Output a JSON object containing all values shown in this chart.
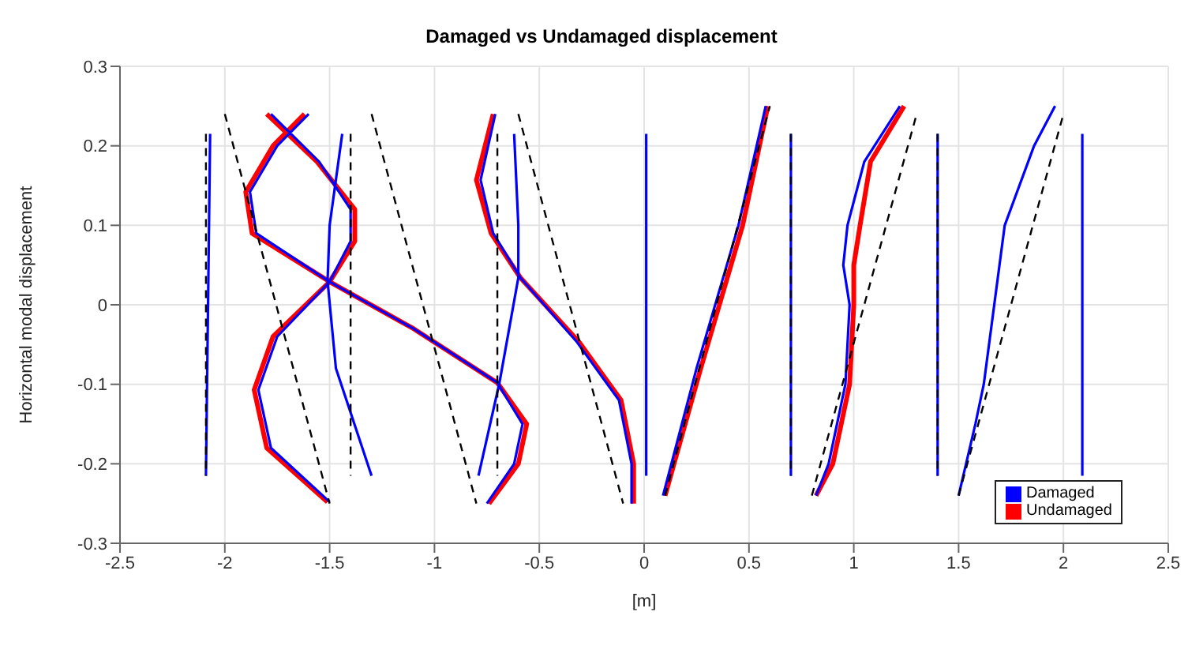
{
  "chart_data": {
    "type": "line",
    "title": "Damaged vs Undamaged displacement",
    "xlabel": "[m]",
    "ylabel": "Horizontal modal displacement",
    "xlim": [
      -2.5,
      2.5
    ],
    "xticks": [
      -2.5,
      -2,
      -1.5,
      -1,
      -0.5,
      0,
      0.5,
      1,
      1.5,
      2,
      2.5
    ],
    "ylim": [
      -0.3,
      0.3
    ],
    "yticks": [
      -0.3,
      -0.2,
      -0.1,
      0,
      0.1,
      0.2,
      0.3
    ],
    "grid": true,
    "legend": "bottom right",
    "marker": "none",
    "series": [
      {
        "name": "Undamaged",
        "color": "#ff0000",
        "x": [
          -1.62,
          -1.77,
          -1.9,
          -1.87,
          -1.5,
          -1.77,
          -1.86,
          -1.8,
          -1.51,
          null,
          -1.8,
          -1.56,
          -1.38,
          -1.38,
          -1.5,
          -1.1,
          -0.7,
          -0.56,
          -0.6,
          -0.74,
          null,
          -0.72,
          -0.8,
          -0.73,
          -0.59,
          -0.31,
          -0.11,
          -0.05,
          -0.05,
          null,
          0.1,
          0.27,
          0.47,
          0.59,
          null,
          0.82,
          0.9,
          0.98,
          1.0,
          1.0,
          1.03,
          1.08,
          1.24
        ],
        "values": [
          0.24,
          0.2,
          0.142,
          0.09,
          0.029,
          -0.04,
          -0.107,
          -0.18,
          -0.248,
          null,
          0.24,
          0.18,
          0.12,
          0.08,
          0.029,
          -0.03,
          -0.098,
          -0.15,
          -0.2,
          -0.25,
          null,
          0.24,
          0.157,
          0.09,
          0.034,
          -0.047,
          -0.12,
          -0.2,
          -0.25,
          null,
          -0.24,
          -0.08,
          0.1,
          0.25,
          null,
          -0.24,
          -0.2,
          -0.1,
          0,
          0.05,
          0.1,
          0.18,
          0.25
        ]
      },
      {
        "name": "Damaged",
        "color": "#0000ff",
        "x": [
          -2.07,
          -2.09,
          null,
          -1.6,
          -1.75,
          -1.88,
          -1.85,
          -1.5,
          -1.75,
          -1.84,
          -1.78,
          -1.5,
          null,
          -1.78,
          -1.55,
          -1.4,
          -1.4,
          -1.5,
          -1.1,
          -0.7,
          -0.58,
          -0.62,
          -0.75,
          null,
          -1.44,
          -1.5,
          -1.51,
          -1.47,
          -1.3,
          null,
          -0.71,
          -0.78,
          -0.72,
          -0.59,
          -0.32,
          -0.12,
          -0.06,
          -0.06,
          null,
          -0.62,
          -0.6,
          -0.6,
          -0.69,
          -0.79,
          null,
          0.01,
          0.01,
          null,
          0.09,
          0.25,
          0.45,
          0.58,
          null,
          0.7,
          0.7,
          null,
          0.82,
          0.88,
          0.96,
          0.98,
          0.95,
          0.97,
          1.05,
          1.22,
          null,
          1.4,
          1.4,
          null,
          1.5,
          1.58,
          1.62,
          1.67,
          1.72,
          1.86,
          1.96,
          null,
          2.09,
          2.09
        ],
        "values": [
          0.215,
          -0.215,
          null,
          0.24,
          0.2,
          0.142,
          0.09,
          0.029,
          -0.04,
          -0.107,
          -0.18,
          -0.248,
          null,
          0.24,
          0.18,
          0.12,
          0.08,
          0.029,
          -0.03,
          -0.098,
          -0.15,
          -0.2,
          -0.25,
          null,
          0.215,
          0.1,
          0.03,
          -0.08,
          -0.215,
          null,
          0.24,
          0.157,
          0.09,
          0.034,
          -0.047,
          -0.12,
          -0.2,
          -0.25,
          null,
          0.215,
          0.1,
          0.034,
          -0.098,
          -0.215,
          null,
          0.215,
          -0.215,
          null,
          -0.24,
          -0.08,
          0.1,
          0.25,
          null,
          0.215,
          -0.215,
          null,
          -0.24,
          -0.2,
          -0.1,
          0,
          0.05,
          0.1,
          0.18,
          0.25,
          null,
          0.215,
          -0.215,
          null,
          -0.24,
          -0.15,
          -0.1,
          0,
          0.1,
          0.2,
          0.25,
          null,
          0.215,
          -0.215
        ]
      },
      {
        "color": "#000000",
        "line_style": "dashed",
        "x": [
          -2.09,
          -2.09,
          null,
          -2.0,
          -1.5,
          null,
          -1.4,
          -1.4,
          null,
          -1.3,
          -0.8,
          null,
          -0.7,
          -0.7,
          null,
          -0.6,
          -0.1,
          null,
          0.1,
          0.6,
          null,
          0.7,
          0.7,
          null,
          0.8,
          1.3,
          null,
          1.4,
          1.4,
          null,
          1.5,
          2.0
        ],
        "values": [
          0.215,
          -0.215,
          null,
          0.24,
          -0.25,
          null,
          0.215,
          -0.215,
          null,
          0.24,
          -0.25,
          null,
          0.215,
          -0.215,
          null,
          0.24,
          -0.25,
          null,
          -0.24,
          0.25,
          null,
          0.215,
          -0.215,
          null,
          -0.24,
          0.24,
          null,
          0.215,
          -0.215,
          null,
          -0.24,
          0.24
        ]
      }
    ]
  }
}
